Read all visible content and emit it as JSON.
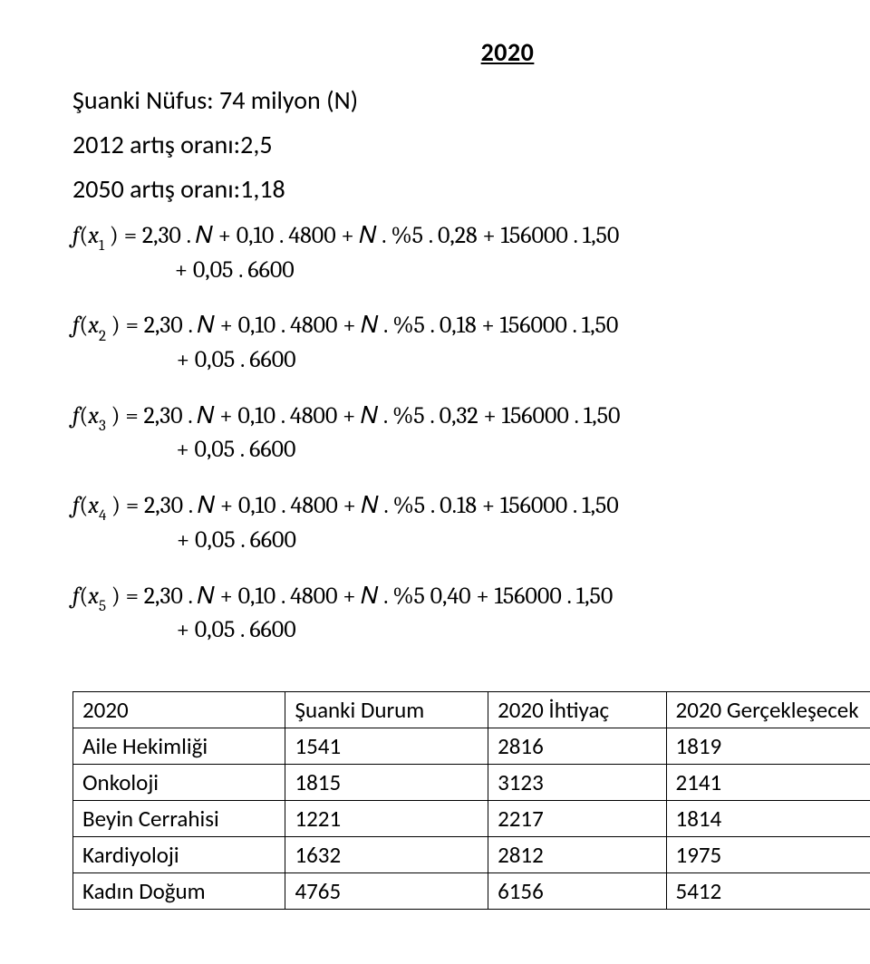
{
  "header_year": "2020",
  "intro": {
    "line1": "Şuanki Nüfus: 74 milyon (N)",
    "line2": "2012 artış oranı:2,5",
    "line3": "2050 artış oranı:1,18"
  },
  "equations": [
    {
      "sub": "1",
      "rhs_main": " = 2,30 . 𝑁 + 0,10 . 4800 + 𝑁 . %5 . 0,28 + 156000 . 1,50",
      "rhs_cont": "+ 0,05 . 6600"
    },
    {
      "sub": "2",
      "rhs_main": " = 2,30 . 𝑁 + 0,10 . 4800 + 𝑁 . %5 . 0,18 + 156000 . 1,50",
      "rhs_cont": "+ 0,05 . 6600"
    },
    {
      "sub": "3",
      "rhs_main": " = 2,30 . 𝑁  +  0,10 . 4800  +  𝑁 . %5 .  0,32  +  156000 . 1,50",
      "rhs_cont": "+  0,05 . 6600"
    },
    {
      "sub": "4",
      "rhs_main": " = 2,30 . 𝑁  +  0,10 . 4800  +  𝑁 . %5 . 0.18  +  156000 . 1,50",
      "rhs_cont": "+  0,05 . 6600"
    },
    {
      "sub": "5",
      "rhs_main": " = 2,30 . 𝑁  +  0,10 . 4800  +  𝑁 . %5 0,40  +  156000 . 1,50",
      "rhs_cont": "+  0,05 . 6600"
    }
  ],
  "table": {
    "headers": [
      "2020",
      "Şuanki Durum",
      "2020 İhtiyaç",
      "2020  Gerçekleşecek"
    ],
    "rows": [
      [
        "Aile Hekimliği",
        "1541",
        "2816",
        "1819"
      ],
      [
        "Onkoloji",
        "1815",
        "3123",
        "2141"
      ],
      [
        "Beyin Cerrahisi",
        "1221",
        "2217",
        "1814"
      ],
      [
        "Kardiyoloji",
        "1632",
        "2812",
        "1975"
      ],
      [
        "Kadın Doğum",
        "4765",
        "6156",
        "5412"
      ]
    ]
  }
}
